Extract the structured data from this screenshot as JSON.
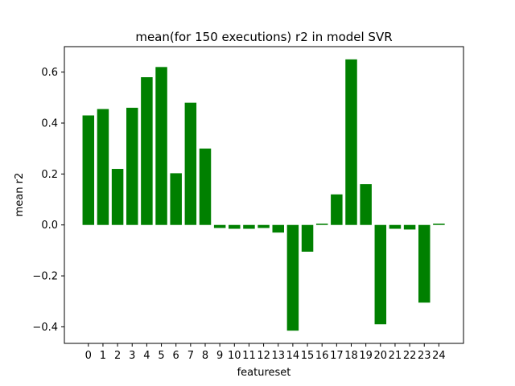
{
  "chart_data": {
    "type": "bar",
    "title": "mean(for 150 executions) r2 in model SVR",
    "xlabel": "featureset",
    "ylabel": "mean r2",
    "categories": [
      "0",
      "1",
      "2",
      "3",
      "4",
      "5",
      "6",
      "7",
      "8",
      "9",
      "10",
      "11",
      "12",
      "13",
      "14",
      "15",
      "16",
      "17",
      "18",
      "19",
      "20",
      "21",
      "22",
      "23",
      "24"
    ],
    "values": [
      0.43,
      0.455,
      0.22,
      0.46,
      0.58,
      0.62,
      0.203,
      0.48,
      0.3,
      -0.012,
      -0.015,
      -0.015,
      -0.012,
      -0.03,
      -0.415,
      -0.105,
      0.005,
      0.12,
      0.65,
      0.16,
      -0.39,
      -0.015,
      -0.018,
      -0.305,
      0.005
    ],
    "ylim": [
      -0.465,
      0.7
    ],
    "yticks": [
      -0.4,
      -0.2,
      0.0,
      0.2,
      0.4,
      0.6
    ],
    "ytick_labels": [
      "−0.4",
      "−0.2",
      "0.0",
      "0.2",
      "0.4",
      "0.6"
    ],
    "bar_color": "#008000",
    "grid": false,
    "legend": "none"
  }
}
